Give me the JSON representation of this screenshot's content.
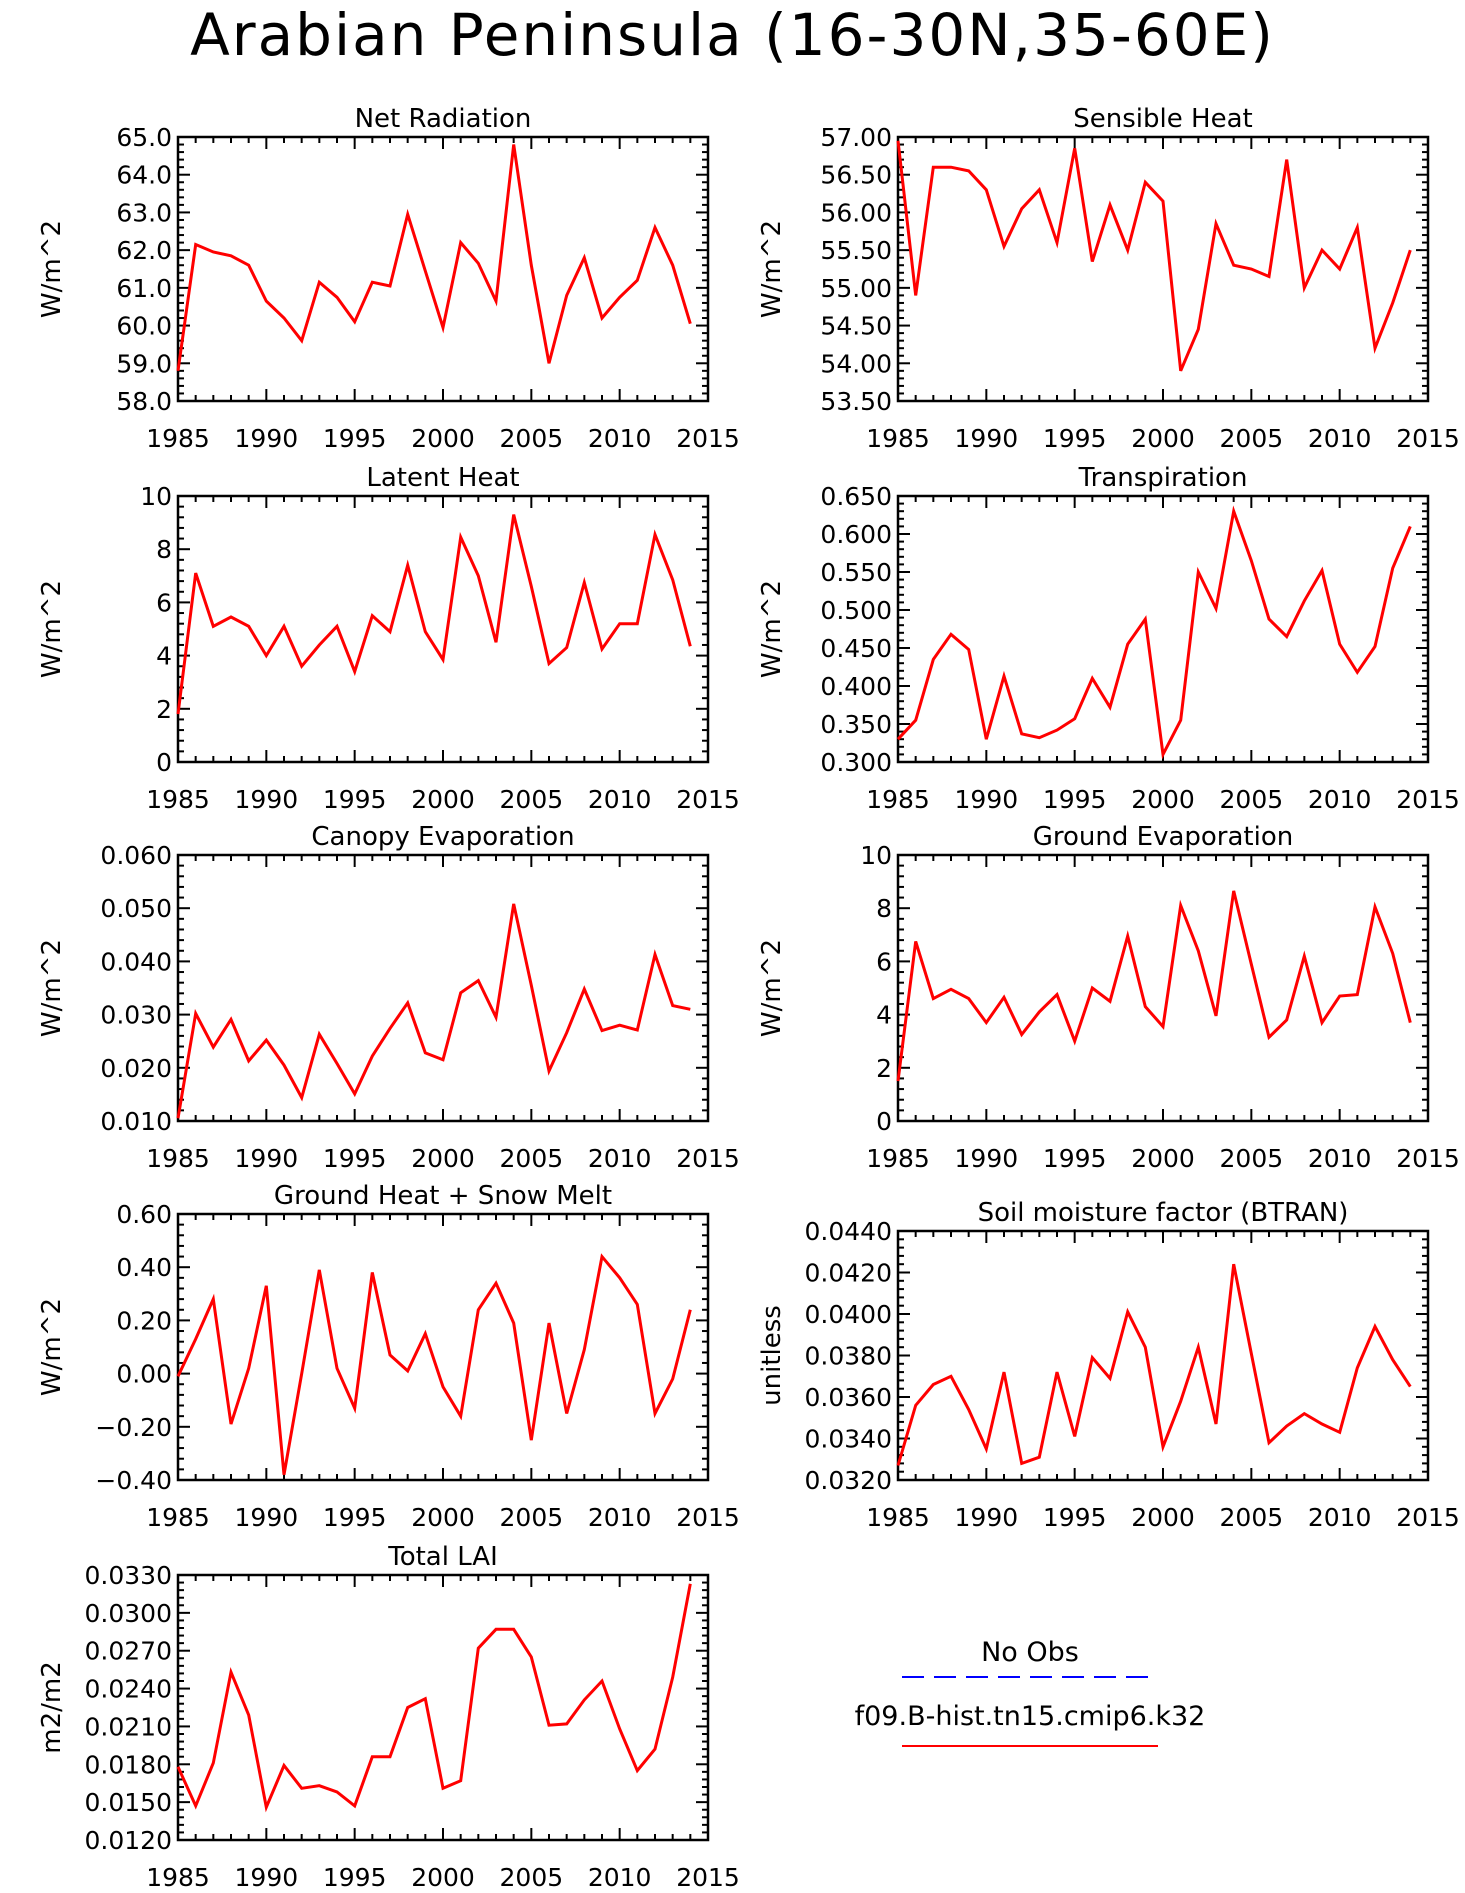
{
  "title": "Arabian Peninsula (16-30N,35-60E)",
  "colors": {
    "model_line": "#ff0000",
    "obs_line": "#0000ff",
    "axes": "#000000"
  },
  "legend": [
    {
      "label": "No Obs",
      "color": "#0000ff",
      "style": "dashed"
    },
    {
      "label": "f09.B-hist.tn15.cmip6.k32",
      "color": "#ff0000",
      "style": "solid"
    }
  ],
  "chart_data": [
    {
      "type": "line",
      "title": "Net Radiation",
      "ylabel": "W/m^2",
      "xlim": [
        1985,
        2015
      ],
      "xticks": [
        1985,
        1990,
        1995,
        2000,
        2005,
        2010,
        2015
      ],
      "ylim": [
        58.0,
        65.0
      ],
      "yticks": [
        58.0,
        59.0,
        60.0,
        61.0,
        62.0,
        63.0,
        64.0,
        65.0
      ],
      "ydecimals": 1,
      "series": [
        {
          "name": "f09.B-hist.tn15.cmip6.k32",
          "x_start": 1985,
          "values": [
            58.8,
            62.15,
            61.95,
            61.85,
            61.6,
            60.65,
            60.2,
            59.6,
            61.15,
            60.75,
            60.1,
            61.15,
            61.05,
            62.95,
            61.45,
            59.95,
            62.2,
            61.65,
            60.65,
            64.8,
            61.6,
            59.0,
            60.8,
            61.8,
            60.2,
            60.75,
            61.2,
            62.6,
            61.6,
            60.05
          ]
        }
      ]
    },
    {
      "type": "line",
      "title": "Sensible Heat",
      "ylabel": "W/m^2",
      "xlim": [
        1985,
        2015
      ],
      "xticks": [
        1985,
        1990,
        1995,
        2000,
        2005,
        2010,
        2015
      ],
      "ylim": [
        53.5,
        57.0
      ],
      "yticks": [
        53.5,
        54.0,
        54.5,
        55.0,
        55.5,
        56.0,
        56.5,
        57.0
      ],
      "ydecimals": 2,
      "series": [
        {
          "name": "f09.B-hist.tn15.cmip6.k32",
          "x_start": 1985,
          "values": [
            56.95,
            54.9,
            56.6,
            56.6,
            56.55,
            56.3,
            55.55,
            56.05,
            56.3,
            55.6,
            56.85,
            55.35,
            56.1,
            55.5,
            56.4,
            56.15,
            53.9,
            54.45,
            55.85,
            55.3,
            55.25,
            55.15,
            56.7,
            55.0,
            55.5,
            55.25,
            55.8,
            54.2,
            54.8,
            55.5
          ]
        }
      ]
    },
    {
      "type": "line",
      "title": "Latent Heat",
      "ylabel": "W/m^2",
      "xlim": [
        1985,
        2015
      ],
      "xticks": [
        1985,
        1990,
        1995,
        2000,
        2005,
        2010,
        2015
      ],
      "ylim": [
        0,
        10
      ],
      "yticks": [
        0,
        2,
        4,
        6,
        8,
        10
      ],
      "ydecimals": 0,
      "series": [
        {
          "name": "f09.B-hist.tn15.cmip6.k32",
          "x_start": 1985,
          "values": [
            1.8,
            7.1,
            5.1,
            5.45,
            5.1,
            4.0,
            5.1,
            3.6,
            4.4,
            5.1,
            3.4,
            5.5,
            4.9,
            7.4,
            4.9,
            3.85,
            8.45,
            7.0,
            4.5,
            9.3,
            6.6,
            3.7,
            4.3,
            6.75,
            4.25,
            5.2,
            5.2,
            8.55,
            6.85,
            4.35
          ]
        }
      ]
    },
    {
      "type": "line",
      "title": "Transpiration",
      "ylabel": "W/m^2",
      "xlim": [
        1985,
        2015
      ],
      "xticks": [
        1985,
        1990,
        1995,
        2000,
        2005,
        2010,
        2015
      ],
      "ylim": [
        0.3,
        0.65
      ],
      "yticks": [
        0.3,
        0.35,
        0.4,
        0.45,
        0.5,
        0.55,
        0.6,
        0.65
      ],
      "ydecimals": 3,
      "series": [
        {
          "name": "f09.B-hist.tn15.cmip6.k32",
          "x_start": 1985,
          "values": [
            0.33,
            0.355,
            0.435,
            0.468,
            0.448,
            0.33,
            0.413,
            0.337,
            0.332,
            0.342,
            0.357,
            0.41,
            0.372,
            0.455,
            0.488,
            0.31,
            0.355,
            0.55,
            0.502,
            0.63,
            0.565,
            0.488,
            0.465,
            0.512,
            0.552,
            0.455,
            0.418,
            0.452,
            0.555,
            0.61
          ]
        }
      ]
    },
    {
      "type": "line",
      "title": "Canopy Evaporation",
      "ylabel": "W/m^2",
      "xlim": [
        1985,
        2015
      ],
      "xticks": [
        1985,
        1990,
        1995,
        2000,
        2005,
        2010,
        2015
      ],
      "ylim": [
        0.01,
        0.06
      ],
      "yticks": [
        0.01,
        0.02,
        0.03,
        0.04,
        0.05,
        0.06
      ],
      "ydecimals": 3,
      "series": [
        {
          "name": "f09.B-hist.tn15.cmip6.k32",
          "x_start": 1985,
          "values": [
            0.0105,
            0.0302,
            0.0239,
            0.0291,
            0.0213,
            0.0252,
            0.0205,
            0.0144,
            0.0263,
            0.0208,
            0.0151,
            0.0222,
            0.0274,
            0.0322,
            0.0228,
            0.0215,
            0.0341,
            0.0364,
            0.0295,
            0.0508,
            0.0355,
            0.0194,
            0.0266,
            0.0348,
            0.027,
            0.028,
            0.0271,
            0.0413,
            0.0317,
            0.031
          ]
        }
      ]
    },
    {
      "type": "line",
      "title": "Ground Evaporation",
      "ylabel": "W/m^2",
      "xlim": [
        1985,
        2015
      ],
      "xticks": [
        1985,
        1990,
        1995,
        2000,
        2005,
        2010,
        2015
      ],
      "ylim": [
        0,
        10
      ],
      "yticks": [
        0,
        2,
        4,
        6,
        8,
        10
      ],
      "ydecimals": 0,
      "series": [
        {
          "name": "f09.B-hist.tn15.cmip6.k32",
          "x_start": 1985,
          "values": [
            1.5,
            6.75,
            4.6,
            4.95,
            4.6,
            3.7,
            4.65,
            3.25,
            4.1,
            4.75,
            3.0,
            5.0,
            4.5,
            6.95,
            4.3,
            3.55,
            8.1,
            6.4,
            3.95,
            8.65,
            5.9,
            3.15,
            3.8,
            6.2,
            3.7,
            4.7,
            4.75,
            8.05,
            6.3,
            3.7
          ]
        }
      ]
    },
    {
      "type": "line",
      "title": "Ground Heat + Snow Melt",
      "ylabel": "W/m^2",
      "xlim": [
        1985,
        2015
      ],
      "xticks": [
        1985,
        1990,
        1995,
        2000,
        2005,
        2010,
        2015
      ],
      "ylim": [
        -0.4,
        0.6
      ],
      "yticks": [
        -0.4,
        -0.2,
        0.0,
        0.2,
        0.4,
        0.6
      ],
      "ydecimals": 2,
      "series": [
        {
          "name": "f09.B-hist.tn15.cmip6.k32",
          "x_start": 1985,
          "values": [
            -0.01,
            0.13,
            0.28,
            -0.19,
            0.02,
            0.33,
            -0.38,
            0.0,
            0.39,
            0.02,
            -0.13,
            0.38,
            0.07,
            0.01,
            0.15,
            -0.05,
            -0.16,
            0.24,
            0.34,
            0.19,
            -0.25,
            0.19,
            -0.15,
            0.09,
            0.44,
            0.36,
            0.26,
            -0.15,
            -0.02,
            0.24
          ]
        }
      ]
    },
    {
      "type": "line",
      "title": "Soil moisture factor (BTRAN)",
      "ylabel": "unitless",
      "xlim": [
        1985,
        2015
      ],
      "xticks": [
        1985,
        1990,
        1995,
        2000,
        2005,
        2010,
        2015
      ],
      "ylim": [
        0.032,
        0.044
      ],
      "yticks": [
        0.032,
        0.034,
        0.036,
        0.038,
        0.04,
        0.042,
        0.044
      ],
      "ydecimals": 4,
      "series": [
        {
          "name": "f09.B-hist.tn15.cmip6.k32",
          "x_start": 1985,
          "values": [
            0.0327,
            0.0356,
            0.0366,
            0.037,
            0.0354,
            0.0335,
            0.0372,
            0.0328,
            0.0331,
            0.0372,
            0.0341,
            0.0379,
            0.0369,
            0.0401,
            0.0384,
            0.0336,
            0.0358,
            0.0384,
            0.0347,
            0.0424,
            0.0381,
            0.0338,
            0.0346,
            0.0352,
            0.0347,
            0.0343,
            0.0374,
            0.0394,
            0.0378,
            0.0365
          ]
        }
      ]
    },
    {
      "type": "line",
      "title": "Total LAI",
      "ylabel": "m2/m2",
      "xlim": [
        1985,
        2015
      ],
      "xticks": [
        1985,
        1990,
        1995,
        2000,
        2005,
        2010,
        2015
      ],
      "ylim": [
        0.012,
        0.033
      ],
      "yticks": [
        0.012,
        0.015,
        0.018,
        0.021,
        0.024,
        0.027,
        0.03,
        0.033
      ],
      "ydecimals": 4,
      "series": [
        {
          "name": "f09.B-hist.tn15.cmip6.k32",
          "x_start": 1985,
          "values": [
            0.0178,
            0.0147,
            0.0181,
            0.0253,
            0.0219,
            0.0146,
            0.0179,
            0.0161,
            0.0163,
            0.0158,
            0.0147,
            0.0186,
            0.0186,
            0.0225,
            0.0232,
            0.0161,
            0.0167,
            0.0272,
            0.0287,
            0.0287,
            0.0265,
            0.0211,
            0.0212,
            0.0231,
            0.0246,
            0.0208,
            0.0175,
            0.0192,
            0.0249,
            0.0323
          ]
        }
      ]
    }
  ]
}
